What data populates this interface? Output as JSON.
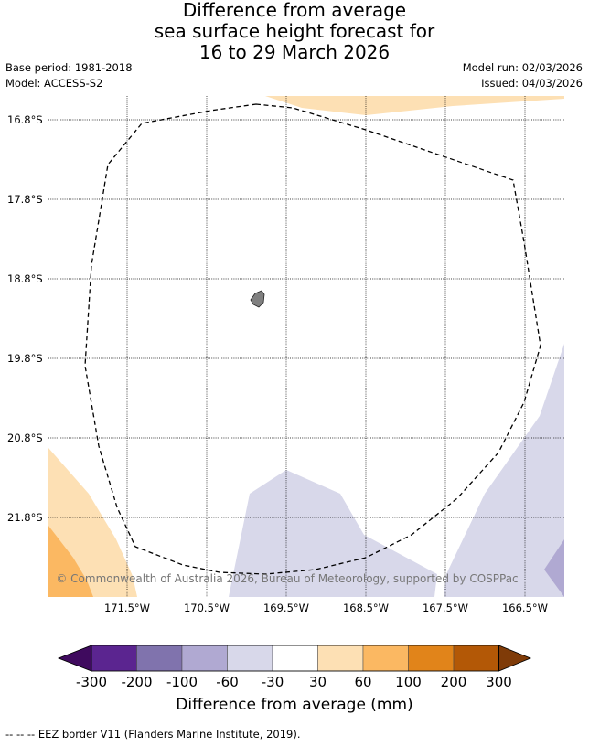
{
  "title_lines": [
    "Difference from average",
    "sea surface height forecast for",
    "16 to 29 March 2026"
  ],
  "meta": {
    "base_period": "Base period: 1981-2018",
    "model": "Model: ACCESS-S2",
    "model_run": "Model run: 02/03/2026",
    "issued": "Issued: 04/03/2026"
  },
  "map": {
    "lat_labels": [
      "16.8°S",
      "17.8°S",
      "18.8°S",
      "19.8°S",
      "20.8°S",
      "21.8°S"
    ],
    "lon_labels": [
      "171.5°W",
      "170.5°W",
      "169.5°W",
      "168.5°W",
      "167.5°W",
      "166.5°W"
    ],
    "copyright": "© Commonwealth of Australia 2026, Bureau of Meteorology, supported by COSPPac",
    "colors": {
      "land": "#808080",
      "eez_border": "#000000",
      "gridline": "#000000"
    }
  },
  "colorbar": {
    "tick_labels": [
      "-300",
      "-200",
      "-100",
      "-60",
      "-30",
      "30",
      "60",
      "100",
      "200",
      "300"
    ],
    "colors": [
      "#3f0a5e",
      "#5b2590",
      "#8073ad",
      "#b0a9d2",
      "#d8d8ea",
      "#ffffff",
      "#fde0b4",
      "#fbb862",
      "#e1841a",
      "#b35806",
      "#7f3b08"
    ],
    "title": "Difference from average (mm)"
  },
  "footer": "--  --  -- EEZ border V11 (Flanders Marine Institute, 2019)."
}
